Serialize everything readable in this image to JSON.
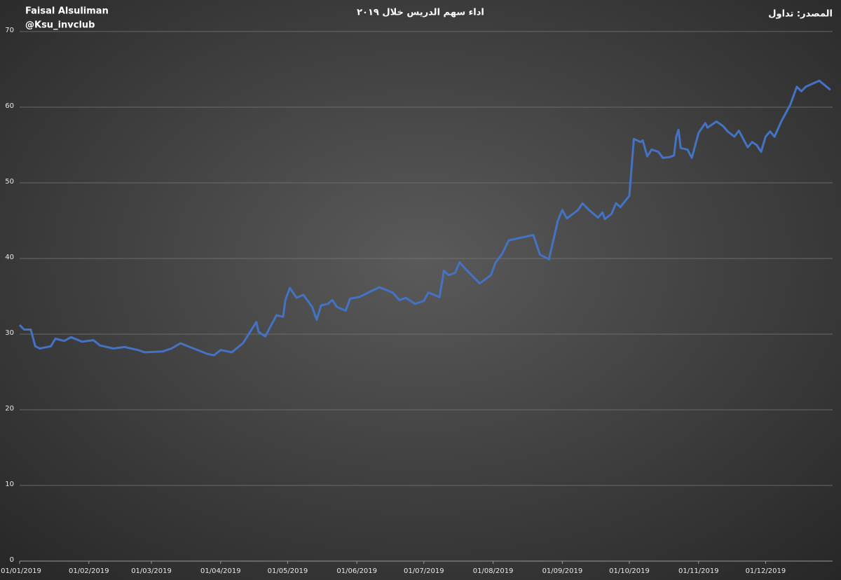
{
  "chart_data": {
    "type": "line",
    "title": "اداء سهم الدريس خلال ٢٠١٩",
    "annotations": [
      "Faisal Alsuliman",
      "@Ksu_invclub",
      "المصدر: تداول"
    ],
    "x": [
      "01/01/2019",
      "03/01/2019",
      "06/01/2019",
      "08/01/2019",
      "10/01/2019",
      "15/01/2019",
      "17/01/2019",
      "21/01/2019",
      "24/01/2019",
      "29/01/2019",
      "03/02/2019",
      "06/02/2019",
      "12/02/2019",
      "17/02/2019",
      "23/02/2019",
      "26/02/2019",
      "06/03/2019",
      "10/03/2019",
      "14/03/2019",
      "19/03/2019",
      "26/03/2019",
      "29/03/2019",
      "01/04/2019",
      "06/04/2019",
      "11/04/2019",
      "14/04/2019",
      "17/04/2019",
      "18/04/2019",
      "21/04/2019",
      "26/04/2019",
      "29/04/2019",
      "30/04/2019",
      "02/05/2019",
      "05/05/2019",
      "08/05/2019",
      "12/05/2019",
      "14/05/2019",
      "16/05/2019",
      "19/05/2019",
      "21/05/2019",
      "23/05/2019",
      "27/05/2019",
      "29/05/2019",
      "02/06/2019",
      "11/06/2019",
      "17/06/2019",
      "20/06/2019",
      "23/06/2019",
      "27/06/2019",
      "01/07/2019",
      "03/07/2019",
      "08/07/2019",
      "10/07/2019",
      "12/07/2019",
      "15/07/2019",
      "17/07/2019",
      "20/07/2019",
      "26/07/2019",
      "31/07/2019",
      "02/08/2019",
      "05/08/2019",
      "08/08/2019",
      "19/08/2019",
      "22/08/2019",
      "26/08/2019",
      "30/08/2019",
      "01/09/2019",
      "03/09/2019",
      "08/09/2019",
      "10/09/2019",
      "13/09/2019",
      "17/09/2019",
      "19/09/2019",
      "20/09/2019",
      "23/09/2019",
      "25/09/2019",
      "27/09/2019",
      "01/10/2019",
      "03/10/2019",
      "06/10/2019",
      "07/10/2019",
      "09/10/2019",
      "11/10/2019",
      "14/10/2019",
      "16/10/2019",
      "19/10/2019",
      "21/10/2019",
      "22/10/2019",
      "23/10/2019",
      "24/10/2019",
      "27/10/2019",
      "29/10/2019",
      "01/11/2019",
      "04/11/2019",
      "05/11/2019",
      "09/11/2019",
      "12/11/2019",
      "14/11/2019",
      "17/11/2019",
      "19/11/2019",
      "23/11/2019",
      "25/11/2019",
      "27/11/2019",
      "29/11/2019",
      "01/12/2019",
      "03/12/2019",
      "05/12/2019",
      "08/12/2019",
      "12/12/2019",
      "15/12/2019",
      "17/12/2019",
      "19/12/2019",
      "25/12/2019",
      "30/12/2019"
    ],
    "series": [
      {
        "color": "#4472c4",
        "values": [
          31.2,
          30.6,
          30.6,
          28.4,
          28.1,
          28.4,
          29.4,
          29.1,
          29.6,
          29.0,
          29.2,
          28.5,
          28.1,
          28.3,
          27.9,
          27.6,
          27.7,
          28.1,
          28.8,
          28.2,
          27.4,
          27.2,
          27.9,
          27.6,
          28.8,
          30.2,
          31.6,
          30.3,
          29.7,
          32.5,
          32.3,
          34.5,
          36.1,
          34.8,
          35.2,
          33.6,
          31.9,
          33.8,
          34.0,
          34.5,
          33.6,
          33.1,
          34.7,
          34.9,
          36.2,
          35.5,
          34.5,
          34.8,
          34.0,
          34.4,
          35.5,
          34.9,
          38.4,
          37.8,
          38.1,
          39.5,
          38.5,
          36.7,
          37.8,
          39.4,
          40.6,
          42.4,
          43.1,
          40.5,
          39.9,
          45.0,
          46.4,
          45.3,
          46.4,
          47.3,
          46.4,
          45.4,
          46.1,
          45.2,
          45.9,
          47.3,
          46.8,
          48.3,
          55.8,
          55.4,
          55.6,
          53.5,
          54.4,
          54.1,
          53.3,
          53.4,
          53.6,
          56.1,
          57.0,
          54.6,
          54.4,
          53.3,
          56.6,
          57.9,
          57.3,
          58.1,
          57.5,
          56.8,
          56.1,
          56.9,
          54.7,
          55.4,
          55.0,
          54.1,
          56.1,
          56.8,
          56.1,
          58.1,
          60.3,
          62.7,
          62.1,
          62.7,
          63.5,
          62.3
        ]
      }
    ],
    "xlim": [
      "01/01/2019",
      "31/12/2019"
    ],
    "xticks": [
      "01/01/2019",
      "01/02/2019",
      "01/03/2019",
      "01/04/2019",
      "01/05/2019",
      "01/06/2019",
      "01/07/2019",
      "01/08/2019",
      "01/09/2019",
      "01/10/2019",
      "01/11/2019",
      "01/12/2019"
    ],
    "ylim": [
      0,
      70
    ],
    "yticks": [
      0,
      10,
      20,
      30,
      40,
      50,
      60,
      70
    ],
    "grid": true
  }
}
